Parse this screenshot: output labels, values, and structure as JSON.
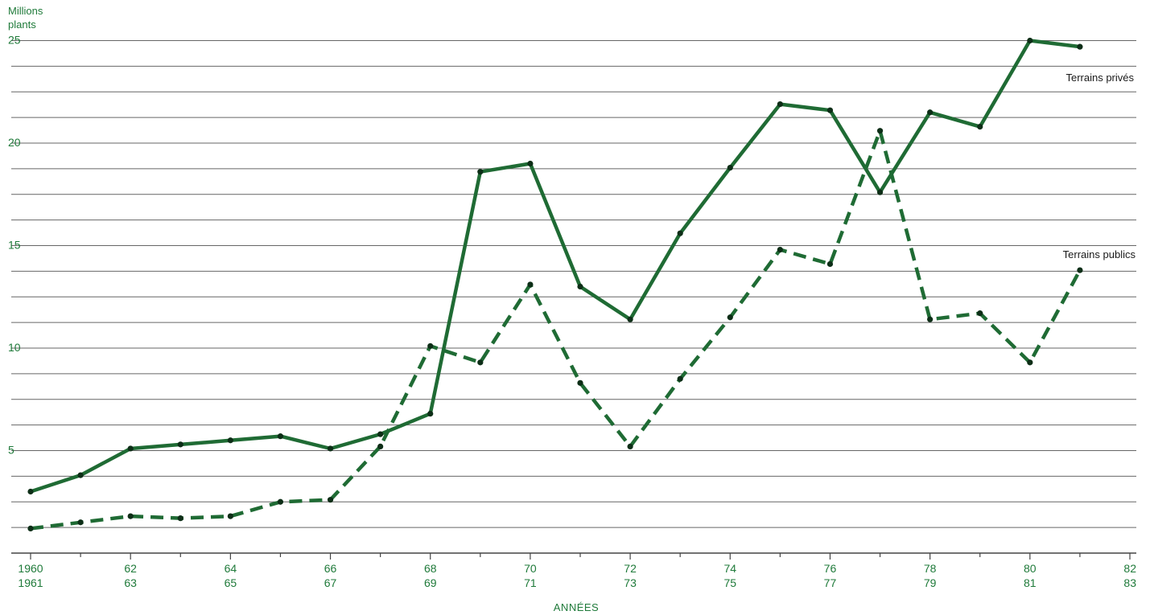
{
  "chart_data": {
    "type": "line",
    "ylabel": [
      "Millions",
      "plants"
    ],
    "xlabel": "ANNÉES",
    "ylim": [
      0,
      26
    ],
    "xlim": [
      1960,
      1982
    ],
    "y_ticks": [
      5,
      10,
      15,
      20,
      25
    ],
    "x_ticks": [
      {
        "x": 1960,
        "top": "1960",
        "bottom": "1961"
      },
      {
        "x": 1962,
        "top": "62",
        "bottom": "63"
      },
      {
        "x": 1964,
        "top": "64",
        "bottom": "65"
      },
      {
        "x": 1966,
        "top": "66",
        "bottom": "67"
      },
      {
        "x": 1968,
        "top": "68",
        "bottom": "69"
      },
      {
        "x": 1970,
        "top": "70",
        "bottom": "71"
      },
      {
        "x": 1972,
        "top": "72",
        "bottom": "73"
      },
      {
        "x": 1974,
        "top": "74",
        "bottom": "75"
      },
      {
        "x": 1976,
        "top": "76",
        "bottom": "77"
      },
      {
        "x": 1978,
        "top": "78",
        "bottom": "79"
      },
      {
        "x": 1980,
        "top": "80",
        "bottom": "81"
      },
      {
        "x": 1982,
        "top": "82",
        "bottom": "83"
      }
    ],
    "grid": true,
    "grid_step": 1.25,
    "colors": {
      "series": "#1f6b34",
      "grid": "#666666",
      "text": "#1f7a3a"
    },
    "x": [
      1960,
      1961,
      1962,
      1963,
      1964,
      1965,
      1966,
      1967,
      1968,
      1969,
      1970,
      1971,
      1972,
      1973,
      1974,
      1975,
      1976,
      1977,
      1978,
      1979,
      1980,
      1981
    ],
    "series": [
      {
        "name": "Terrains privés",
        "style": "solid",
        "values": [
          3.0,
          3.8,
          5.1,
          5.3,
          5.5,
          5.7,
          5.1,
          5.8,
          6.8,
          18.6,
          19.0,
          13.0,
          11.4,
          15.6,
          18.8,
          21.9,
          21.6,
          17.6,
          21.5,
          20.8,
          25.0,
          24.7
        ]
      },
      {
        "name": "Terrains publics",
        "style": "dashed",
        "values": [
          1.2,
          1.5,
          1.8,
          1.7,
          1.8,
          2.5,
          2.6,
          5.2,
          10.1,
          9.3,
          13.1,
          8.3,
          5.2,
          8.5,
          11.5,
          14.8,
          14.1,
          20.6,
          11.4,
          11.7,
          9.3,
          13.8
        ]
      }
    ]
  }
}
